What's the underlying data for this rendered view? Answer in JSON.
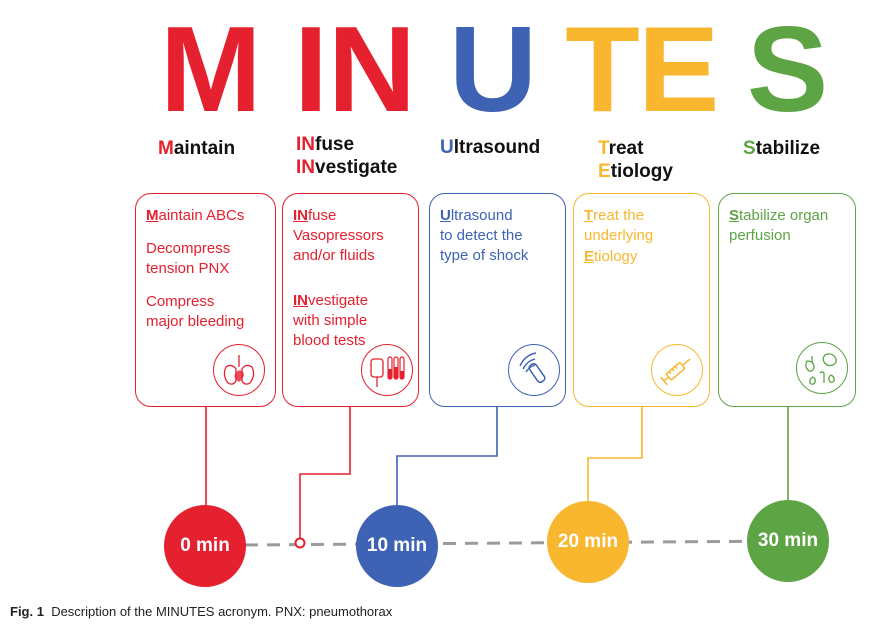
{
  "colors": {
    "red": "#e5202f",
    "blue": "#3e62b4",
    "yellow": "#f8b72f",
    "green": "#5ca444"
  },
  "letters": {
    "m": "M",
    "in": "IN",
    "u": "U",
    "t": "T",
    "e": "E",
    "s": "S"
  },
  "columns": {
    "maintain": {
      "hl": "M",
      "rest": "aintain"
    },
    "infuse": {
      "hl1": "IN",
      "rest1": "fuse",
      "hl2": "IN",
      "rest2": "vestigate"
    },
    "ultrasound": {
      "hl": "U",
      "rest": "ltrasound"
    },
    "treat": {
      "hl1": "T",
      "rest1": "reat",
      "hl2": "E",
      "rest2": "tiology"
    },
    "stabilize": {
      "hl": "S",
      "rest": "tabilize"
    }
  },
  "boxes": {
    "maintain": {
      "p1_hl": "M",
      "p1_rest": "aintain ABCs",
      "p2": "Decompress\ntension PNX",
      "p3": "Compress\nmajor  bleeding",
      "icon": "heart-lungs-icon"
    },
    "infuse": {
      "p1_hl": "IN",
      "p1_rest": "fuse\nVasopressors\nand/or fluids",
      "p2_hl": "IN",
      "p2_rest": "vestigate\nwith simple\nblood tests",
      "icon": "iv-bag-test-tubes-icon"
    },
    "ultrasound": {
      "p1_hl": "U",
      "p1_rest": "ltrasound\nto detect the\ntype of shock",
      "icon": "ultrasound-probe-icon"
    },
    "treat": {
      "p1_hl": "T",
      "p1_rest": "reat the\nunderlying",
      "p2_hl": "E",
      "p2_rest": "tiology",
      "icon": "syringe-icon"
    },
    "stabilize": {
      "p1_hl": "S",
      "p1_rest": "tabilize organ\nperfusion",
      "icon": "organs-icon"
    }
  },
  "timeline": {
    "t0": "0 min",
    "t10": "10 min",
    "t20": "20 min",
    "t30": "30 min"
  },
  "caption": {
    "label": "Fig. 1",
    "text": "Description of the MINUTES acronym. PNX: pneumothorax"
  }
}
